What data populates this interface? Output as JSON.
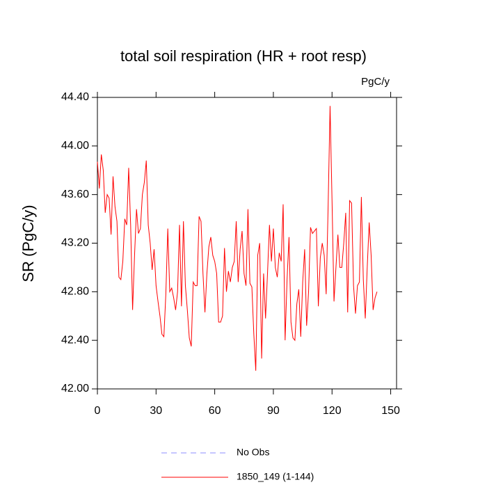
{
  "chart_data": {
    "type": "line",
    "title": "total soil respiration (HR + root resp)",
    "units": "PgC/y",
    "y_label": "SR  (PgC/y)",
    "x": [
      0,
      1,
      2,
      3,
      4,
      5,
      6,
      7,
      8,
      9,
      10,
      11,
      12,
      13,
      14,
      15,
      16,
      17,
      18,
      19,
      20,
      21,
      22,
      23,
      24,
      25,
      26,
      27,
      28,
      29,
      30,
      31,
      32,
      33,
      34,
      35,
      36,
      37,
      38,
      39,
      40,
      41,
      42,
      43,
      44,
      45,
      46,
      47,
      48,
      49,
      50,
      51,
      52,
      53,
      54,
      55,
      56,
      57,
      58,
      59,
      60,
      61,
      62,
      63,
      64,
      65,
      66,
      67,
      68,
      69,
      70,
      71,
      72,
      73,
      74,
      75,
      76,
      77,
      78,
      79,
      80,
      81,
      82,
      83,
      84,
      85,
      86,
      87,
      88,
      89,
      90,
      91,
      92,
      93,
      94,
      95,
      96,
      97,
      98,
      99,
      100,
      101,
      102,
      103,
      104,
      105,
      106,
      107,
      108,
      109,
      110,
      111,
      112,
      113,
      114,
      115,
      116,
      117,
      118,
      119,
      120,
      121,
      122,
      123,
      124,
      125,
      126,
      127,
      128,
      129,
      130,
      131,
      132,
      133,
      134,
      135,
      136,
      137,
      138,
      139,
      140,
      141,
      142,
      143
    ],
    "series": [
      {
        "name": "1850_149 (1-144)",
        "color": "#ff0000",
        "values": [
          43.87,
          43.65,
          43.93,
          43.8,
          43.45,
          43.6,
          43.57,
          43.27,
          43.75,
          43.5,
          43.38,
          42.92,
          42.9,
          43.05,
          43.4,
          43.35,
          43.82,
          43.35,
          42.65,
          43.1,
          43.48,
          43.28,
          43.32,
          43.6,
          43.7,
          43.88,
          43.35,
          43.2,
          42.98,
          43.15,
          42.85,
          42.72,
          42.6,
          42.45,
          42.43,
          42.78,
          43.32,
          42.8,
          42.83,
          42.75,
          42.65,
          42.8,
          43.35,
          42.68,
          43.38,
          42.85,
          42.65,
          42.42,
          42.35,
          42.88,
          42.85,
          42.85,
          43.42,
          43.38,
          42.95,
          42.63,
          42.95,
          43.17,
          43.25,
          43.1,
          43.05,
          42.95,
          42.55,
          42.55,
          42.6,
          43.16,
          42.8,
          42.97,
          42.88,
          43.0,
          43.05,
          43.38,
          42.88,
          43.15,
          43.3,
          42.95,
          42.85,
          43.48,
          42.87,
          42.84,
          42.45,
          42.15,
          43.1,
          43.2,
          42.25,
          42.95,
          42.58,
          42.95,
          43.35,
          43.05,
          43.32,
          43.0,
          42.92,
          43.12,
          43.05,
          43.52,
          42.4,
          42.9,
          43.25,
          42.55,
          42.42,
          42.4,
          42.7,
          42.82,
          42.43,
          42.88,
          43.15,
          42.52,
          42.8,
          43.33,
          43.28,
          43.3,
          43.32,
          42.68,
          43.08,
          43.2,
          43.1,
          42.78,
          43.5,
          44.33,
          43.55,
          42.72,
          43.0,
          43.27,
          43.0,
          43.0,
          43.2,
          43.45,
          42.63,
          43.55,
          43.53,
          42.85,
          42.62,
          42.85,
          42.88,
          43.58,
          42.9,
          42.58,
          43.0,
          43.37,
          43.1,
          42.65,
          42.75,
          42.8
        ]
      }
    ],
    "reference": {
      "name": "No Obs",
      "color": "#8c8cff",
      "dashed": true
    },
    "xlim": [
      0,
      153
    ],
    "xticks": [
      0,
      30,
      60,
      90,
      120,
      150
    ],
    "ylim": [
      42,
      44.4
    ],
    "yticks": [
      {
        "value": 42.0,
        "label": "42.00"
      },
      {
        "value": 42.4,
        "label": "42.40"
      },
      {
        "value": 42.8,
        "label": "42.80"
      },
      {
        "value": 43.2,
        "label": "43.20"
      },
      {
        "value": 43.6,
        "label": "43.60"
      },
      {
        "value": 44.0,
        "label": "44.00"
      },
      {
        "value": 44.4,
        "label": "44.40"
      }
    ],
    "legend": "bottom"
  }
}
